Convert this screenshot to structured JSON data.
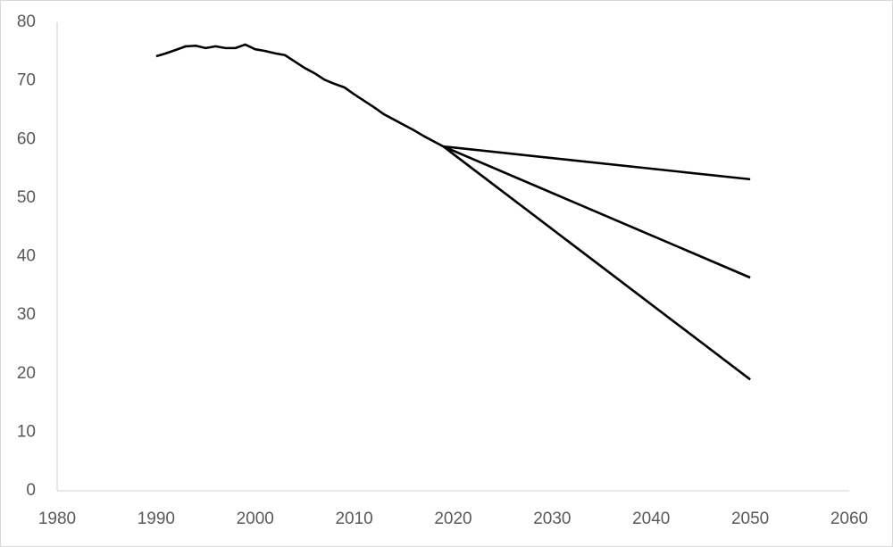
{
  "chart_data": {
    "type": "line",
    "x": [
      1990,
      1991,
      1992,
      1993,
      1994,
      1995,
      1996,
      1997,
      1998,
      1999,
      2000,
      2001,
      2002,
      2003,
      2004,
      2005,
      2006,
      2007,
      2008,
      2009,
      2010,
      2011,
      2012,
      2013,
      2014,
      2015,
      2016,
      2017,
      2018,
      2019,
      2050
    ],
    "series": [
      {
        "color": "#000000",
        "values": [
          74.2,
          74.7,
          75.3,
          75.9,
          76.0,
          75.6,
          75.9,
          75.6,
          75.6,
          76.2,
          75.4,
          75.1,
          74.7,
          74.4,
          73.3,
          72.2,
          71.3,
          70.2,
          69.5,
          68.9,
          67.7,
          66.6,
          65.5,
          64.3,
          63.4,
          62.5,
          61.6,
          60.6,
          59.7,
          58.8,
          null
        ]
      },
      {
        "color": "#000000",
        "values": [
          null,
          null,
          null,
          null,
          null,
          null,
          null,
          null,
          null,
          null,
          null,
          null,
          null,
          null,
          null,
          null,
          null,
          null,
          null,
          null,
          null,
          null,
          null,
          null,
          null,
          null,
          null,
          null,
          null,
          58.8,
          53.2
        ]
      },
      {
        "color": "#000000",
        "values": [
          null,
          null,
          null,
          null,
          null,
          null,
          null,
          null,
          null,
          null,
          null,
          null,
          null,
          null,
          null,
          null,
          null,
          null,
          null,
          null,
          null,
          null,
          null,
          null,
          null,
          null,
          null,
          null,
          null,
          58.8,
          36.4
        ]
      },
      {
        "color": "#000000",
        "values": [
          null,
          null,
          null,
          null,
          null,
          null,
          null,
          null,
          null,
          null,
          null,
          null,
          null,
          null,
          null,
          null,
          null,
          null,
          null,
          null,
          null,
          null,
          null,
          null,
          null,
          null,
          null,
          null,
          null,
          58.8,
          19.0
        ]
      }
    ],
    "xlim": [
      1980,
      2060
    ],
    "xticks": [
      1980,
      1990,
      2000,
      2010,
      2020,
      2030,
      2040,
      2050,
      2060
    ],
    "ylim": [
      0,
      80
    ],
    "yticks": [
      0,
      10,
      20,
      30,
      40,
      50,
      60,
      70,
      80
    ],
    "grid": false
  }
}
